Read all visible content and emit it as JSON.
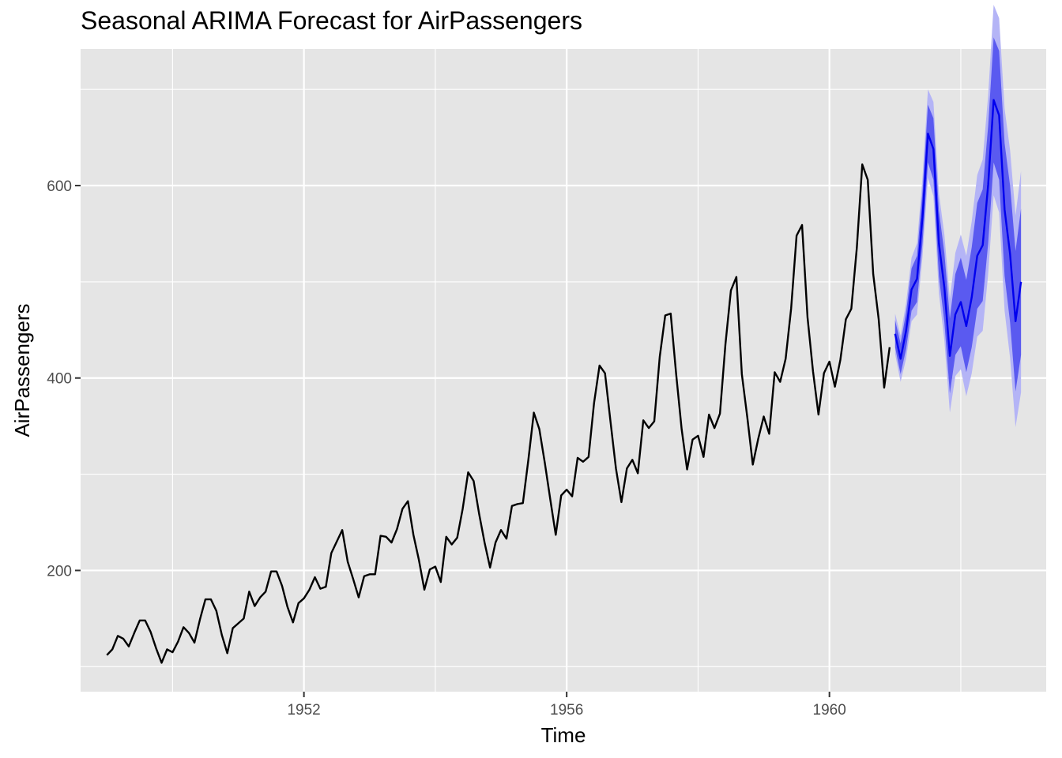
{
  "chart_data": {
    "type": "line",
    "title": "Seasonal ARIMA Forecast for AirPassengers",
    "xlabel": "Time",
    "ylabel": "AirPassengers",
    "xlim": [
      1948.6,
      1963.3
    ],
    "ylim": [
      74,
      742
    ],
    "x_ticks": [
      1952,
      1956,
      1960
    ],
    "x_tick_labels": [
      "1952",
      "1956",
      "1960"
    ],
    "x_minor_ticks": [
      1950,
      1954,
      1958,
      1962
    ],
    "y_ticks": [
      200,
      400,
      600
    ],
    "y_tick_labels": [
      "200",
      "400",
      "600"
    ],
    "y_minor_ticks": [
      100,
      300,
      500,
      700
    ],
    "grid": true,
    "colors": {
      "panel": "#e5e5e5",
      "grid": "#ffffff",
      "observed": "#000000",
      "forecast": "#0000ee",
      "pi80": "#5a5af0",
      "pi95": "#b4b4f6"
    },
    "observed": {
      "start": 1949,
      "frequency": 12,
      "values": [
        112,
        118,
        132,
        129,
        121,
        135,
        148,
        148,
        136,
        119,
        104,
        118,
        115,
        126,
        141,
        135,
        125,
        149,
        170,
        170,
        158,
        133,
        114,
        140,
        145,
        150,
        178,
        163,
        172,
        178,
        199,
        199,
        184,
        162,
        146,
        166,
        171,
        180,
        193,
        181,
        183,
        218,
        230,
        242,
        209,
        191,
        172,
        194,
        196,
        196,
        236,
        235,
        229,
        243,
        264,
        272,
        237,
        211,
        180,
        201,
        204,
        188,
        235,
        227,
        234,
        264,
        302,
        293,
        259,
        229,
        203,
        229,
        242,
        233,
        267,
        269,
        270,
        315,
        364,
        347,
        312,
        274,
        237,
        278,
        284,
        277,
        317,
        313,
        318,
        374,
        413,
        405,
        355,
        306,
        271,
        306,
        315,
        301,
        356,
        348,
        355,
        422,
        465,
        467,
        404,
        347,
        305,
        336,
        340,
        318,
        362,
        348,
        363,
        435,
        491,
        505,
        404,
        359,
        310,
        337,
        360,
        342,
        406,
        396,
        420,
        472,
        548,
        559,
        463,
        407,
        362,
        405,
        417,
        391,
        419,
        461,
        472,
        535,
        622,
        606,
        508,
        461,
        390,
        432
      ]
    },
    "forecast": {
      "start": 1961,
      "frequency": 12,
      "mean": [
        446,
        420,
        449,
        492,
        503,
        567,
        654,
        638,
        540,
        494,
        423,
        466,
        479,
        454,
        484,
        527,
        538,
        601,
        689,
        673,
        575,
        529,
        459,
        500
      ],
      "lo80": [
        432,
        404,
        430,
        470,
        479,
        540,
        624,
        606,
        506,
        458,
        384,
        424,
        433,
        406,
        432,
        472,
        480,
        540,
        624,
        606,
        506,
        458,
        386,
        424
      ],
      "hi80": [
        460,
        436,
        468,
        514,
        527,
        594,
        684,
        670,
        574,
        530,
        462,
        508,
        525,
        502,
        536,
        582,
        596,
        662,
        754,
        740,
        644,
        600,
        532,
        576
      ],
      "lo95": [
        425,
        396,
        420,
        459,
        466,
        526,
        608,
        589,
        488,
        439,
        364,
        402,
        409,
        381,
        405,
        443,
        449,
        508,
        590,
        572,
        470,
        421,
        349,
        385
      ],
      "hi95": [
        467,
        444,
        478,
        525,
        540,
        608,
        700,
        687,
        592,
        549,
        482,
        530,
        549,
        527,
        563,
        611,
        627,
        694,
        788,
        774,
        680,
        637,
        569,
        615
      ]
    },
    "bands_drawn_to": 1962.917
  }
}
